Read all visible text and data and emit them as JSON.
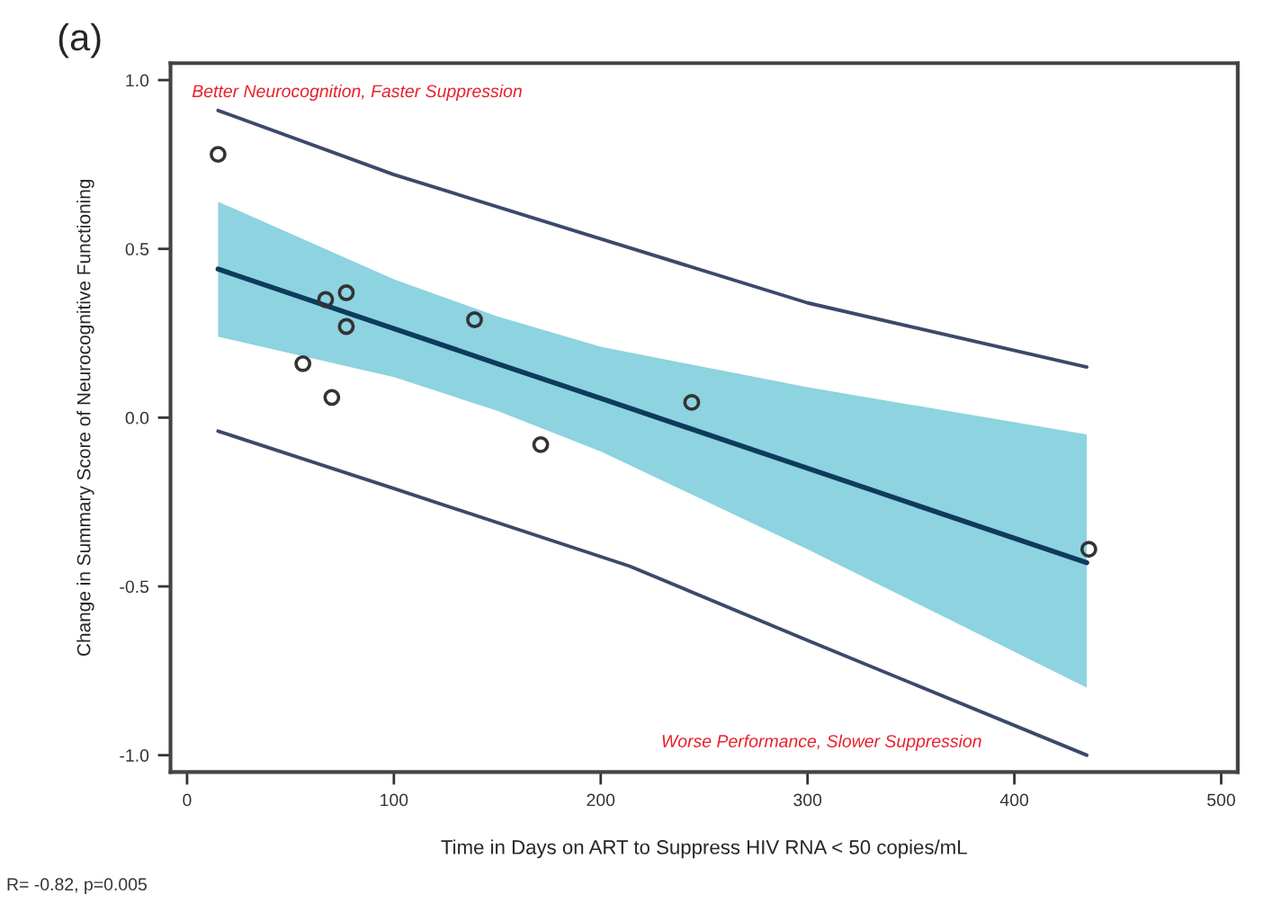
{
  "chart_data": {
    "type": "scatter",
    "title": "(a)",
    "xlabel": "Time in Days on ART to Suppress HIV RNA < 50 copies/mL",
    "ylabel": "Change in Summary Score of Neurocognitive Functioning",
    "annotations": [
      "Better Neurocognition, Faster Suppression",
      "Worse Performance, Slower Suppression",
      "R= -0.82, p=0.005"
    ],
    "xlim": [
      -8,
      508
    ],
    "ylim": [
      -1.05,
      1.05
    ],
    "xticks": [
      0,
      100,
      200,
      300,
      400,
      500
    ],
    "yticks": [
      {
        "value": -1.0,
        "label": "-1.0"
      },
      {
        "value": -0.5,
        "label": "-0.5"
      },
      {
        "value": 0.0,
        "label": "0.0"
      },
      {
        "value": 0.5,
        "label": "0.5"
      },
      {
        "value": 1.0,
        "label": "1.0"
      }
    ],
    "grid": false,
    "legend": false,
    "series": [
      {
        "type": "line",
        "color": "#0d3b5c",
        "marker": "none",
        "x": [
          15,
          100,
          150,
          200,
          300,
          435
        ],
        "values": [
          0.44,
          0.264,
          0.16,
          0.057,
          -0.15,
          -0.43
        ],
        "lower": [
          0.24,
          0.12,
          0.02,
          -0.1,
          -0.39,
          -0.8
        ],
        "upper": [
          0.64,
          0.41,
          0.3,
          0.21,
          0.09,
          -0.05
        ]
      },
      {
        "type": "line",
        "color": "#3b4a6b",
        "marker": "none",
        "x": [
          15,
          100,
          205,
          300,
          435
        ],
        "values": [
          0.91,
          0.72,
          0.52,
          0.34,
          0.15
        ]
      },
      {
        "type": "line",
        "color": "#3b4a6b",
        "marker": "none",
        "x": [
          15,
          100,
          214,
          300,
          435
        ],
        "values": [
          -0.04,
          -0.21,
          -0.44,
          -0.66,
          -1.0
        ]
      },
      {
        "color": "#333333",
        "marker": "circle",
        "x": [
          15,
          56,
          67,
          77,
          77,
          70,
          139,
          171,
          244,
          436
        ],
        "values": [
          0.78,
          0.16,
          0.35,
          0.37,
          0.27,
          0.06,
          0.29,
          -0.08,
          0.045,
          -0.39
        ]
      }
    ]
  }
}
